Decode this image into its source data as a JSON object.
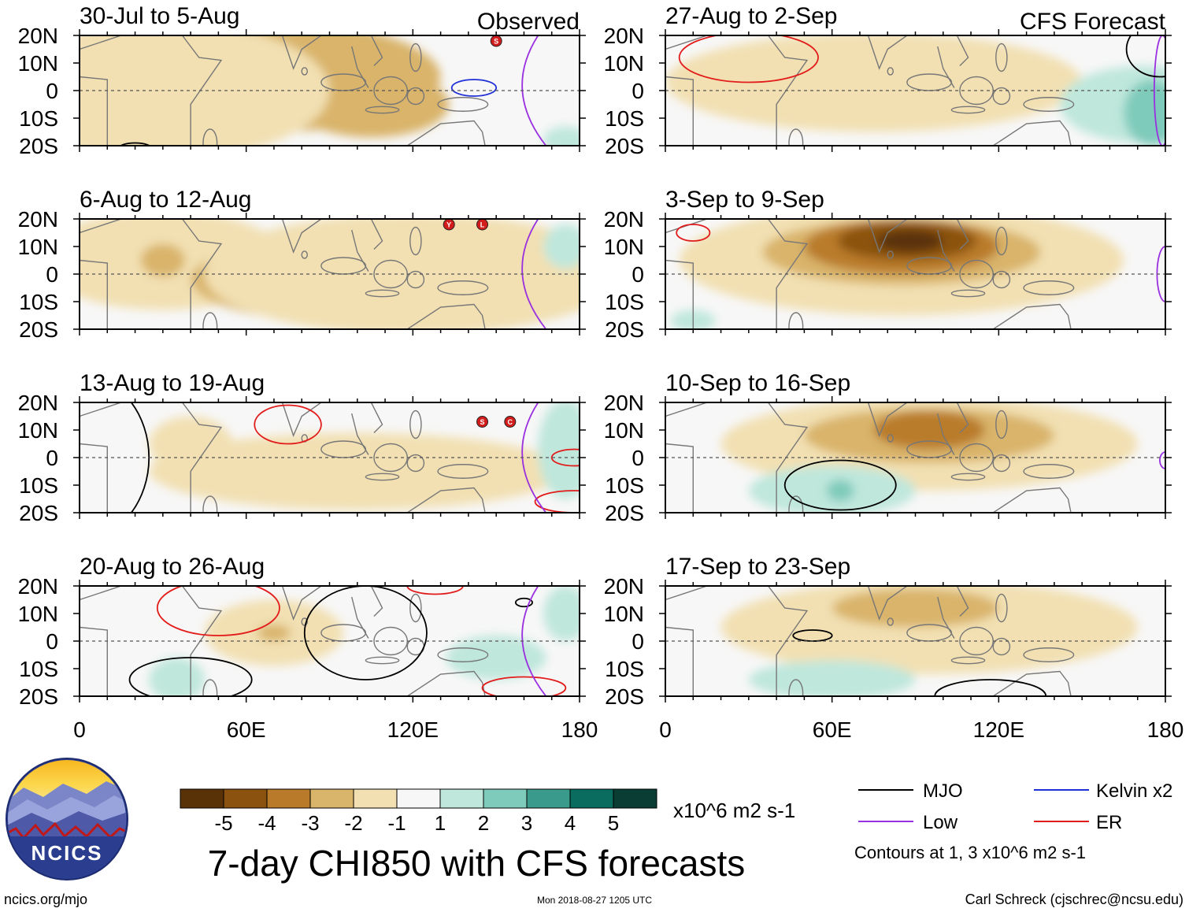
{
  "chart_data": {
    "type": "heatmap",
    "title": "7-day CHI850 with CFS forecasts",
    "units": "x10^6 m2 s-1",
    "xlabel": "",
    "ylabel": "",
    "xlim": [
      0,
      180
    ],
    "ylim": [
      -20,
      20
    ],
    "x_ticks": [
      "0",
      "60E",
      "120E",
      "180"
    ],
    "y_ticks": [
      "20N",
      "10N",
      "0",
      "10S",
      "20S"
    ],
    "colorbar": {
      "tick_labels": [
        "-5",
        "-4",
        "-3",
        "-2",
        "-1",
        "1",
        "2",
        "3",
        "4",
        "5"
      ],
      "colors": [
        "#5a3208",
        "#8b520f",
        "#b97b2a",
        "#d9b46b",
        "#f2e0b2",
        "#f7f7f7",
        "#bfe7dc",
        "#7fcbbb",
        "#3a9b8d",
        "#0a6b5f",
        "#0a3d33"
      ]
    },
    "columns": [
      {
        "name": "Observed",
        "panels": [
          {
            "period": "30-Jul to 5-Aug",
            "header": "Observed",
            "blobs": [
              {
                "lon": 20,
                "lat": 10,
                "value": -2.5,
                "rlon": 22,
                "rlat": 9
              },
              {
                "lon": 70,
                "lat": 10,
                "value": -2.5,
                "rlon": 20,
                "rlat": 10
              },
              {
                "lon": 105,
                "lat": -5,
                "value": -2.5,
                "rlon": 28,
                "rlat": 12
              },
              {
                "lon": 70,
                "lat": 5,
                "value": -2,
                "rlon": 60,
                "rlat": 20
              },
              {
                "lon": 30,
                "lat": 0,
                "value": -1,
                "rlon": 60,
                "rlat": 25
              },
              {
                "lon": 175,
                "lat": -18,
                "value": 1.2,
                "rlon": 8,
                "rlat": 5
              }
            ],
            "contours": [
              {
                "type": "Kelvin",
                "lon": 142,
                "lat": 1,
                "rlon": 8,
                "rlat": 3
              },
              {
                "type": "MJO",
                "lon": 20,
                "lat": -21,
                "rlon": 6,
                "rlat": 2
              }
            ],
            "storms": [
              {
                "lon": 150,
                "lat": 18,
                "label": "S"
              }
            ]
          },
          {
            "period": "6-Aug to 12-Aug",
            "header": "",
            "blobs": [
              {
                "lon": 30,
                "lat": 5,
                "value": -1.8,
                "rlon": 45,
                "rlat": 18
              },
              {
                "lon": 95,
                "lat": -3,
                "value": -3,
                "rlon": 35,
                "rlat": 10
              },
              {
                "lon": 100,
                "lat": -2,
                "value": -2,
                "rlon": 60,
                "rlat": 16
              },
              {
                "lon": 120,
                "lat": 0,
                "value": -1,
                "rlon": 75,
                "rlat": 22
              },
              {
                "lon": 30,
                "lat": 5,
                "value": -2.6,
                "rlon": 8,
                "rlat": 6
              },
              {
                "lon": 175,
                "lat": 10,
                "value": 1.2,
                "rlon": 8,
                "rlat": 8
              }
            ],
            "contours": [],
            "storms": [
              {
                "lon": 133,
                "lat": 18,
                "label": "Y"
              },
              {
                "lon": 145,
                "lat": 18,
                "label": "L"
              }
            ]
          },
          {
            "period": "13-Aug to 19-Aug",
            "header": "",
            "blobs": [
              {
                "lon": 105,
                "lat": -6,
                "value": -2,
                "rlon": 40,
                "rlat": 10
              },
              {
                "lon": 100,
                "lat": -5,
                "value": -1,
                "rlon": 75,
                "rlat": 14
              },
              {
                "lon": 40,
                "lat": 5,
                "value": -1,
                "rlon": 15,
                "rlat": 10
              },
              {
                "lon": 175,
                "lat": 3,
                "value": 1.5,
                "rlon": 10,
                "rlat": 18
              }
            ],
            "contours": [
              {
                "type": "ER",
                "lon": 75,
                "lat": 12,
                "rlon": 12,
                "rlat": 7
              },
              {
                "type": "ER",
                "lon": 178,
                "lat": 0,
                "rlon": 8,
                "rlat": 3
              },
              {
                "type": "ER",
                "lon": 178,
                "lat": -16,
                "rlon": 14,
                "rlat": 4
              },
              {
                "type": "MJO",
                "lon": 0,
                "lat": 0,
                "rlon": 25,
                "rlat": 30
              }
            ],
            "storms": [
              {
                "lon": 145,
                "lat": 13,
                "label": "S"
              },
              {
                "lon": 155,
                "lat": 13,
                "label": "C"
              }
            ]
          },
          {
            "period": "20-Aug to 26-Aug",
            "header": "",
            "blobs": [
              {
                "lon": 70,
                "lat": 3,
                "value": -1,
                "rlon": 25,
                "rlat": 12
              },
              {
                "lon": 70,
                "lat": 3,
                "value": -2,
                "rlon": 6,
                "rlat": 3
              },
              {
                "lon": 35,
                "lat": -14,
                "value": 1.2,
                "rlon": 10,
                "rlat": 8
              },
              {
                "lon": 150,
                "lat": -6,
                "value": 1.2,
                "rlon": 18,
                "rlat": 8
              },
              {
                "lon": 175,
                "lat": 10,
                "value": 1.2,
                "rlon": 8,
                "rlat": 10
              }
            ],
            "contours": [
              {
                "type": "ER",
                "lon": 50,
                "lat": 12,
                "rlon": 22,
                "rlat": 10
              },
              {
                "type": "ER",
                "lon": 160,
                "lat": -17,
                "rlon": 15,
                "rlat": 4
              },
              {
                "type": "ER",
                "lon": 128,
                "lat": 20,
                "rlon": 10,
                "rlat": 3
              },
              {
                "type": "MJO",
                "lon": 103,
                "lat": 3,
                "rlon": 22,
                "rlat": 17
              },
              {
                "type": "MJO",
                "lon": 40,
                "lat": -14,
                "rlon": 22,
                "rlat": 8
              },
              {
                "type": "MJO",
                "lon": 160,
                "lat": 14,
                "rlon": 3,
                "rlat": 1.5
              }
            ],
            "storms": []
          }
        ]
      },
      {
        "name": "CFS Forecast",
        "panels": [
          {
            "period": "27-Aug to 2-Sep",
            "header": "CFS Forecast",
            "blobs": [
              {
                "lon": 90,
                "lat": 5,
                "value": -3,
                "rlon": 22,
                "rlat": 5
              },
              {
                "lon": 85,
                "lat": 5,
                "value": -2,
                "rlon": 40,
                "rlat": 12
              },
              {
                "lon": 75,
                "lat": 3,
                "value": -1,
                "rlon": 75,
                "rlat": 18
              },
              {
                "lon": 172,
                "lat": -5,
                "value": 1,
                "rlon": 30,
                "rlat": 14
              },
              {
                "lon": 175,
                "lat": -8,
                "value": 2,
                "rlon": 10,
                "rlat": 12
              }
            ],
            "contours": [
              {
                "type": "ER",
                "lon": 30,
                "lat": 12,
                "rlon": 25,
                "rlat": 9
              },
              {
                "type": "Low",
                "lon": 179,
                "lat": 0,
                "rlon": 3,
                "rlat": 20
              },
              {
                "type": "MJO",
                "lon": 178,
                "lat": 15,
                "rlon": 12,
                "rlat": 10
              }
            ],
            "storms": []
          },
          {
            "period": "3-Sep to 9-Sep",
            "header": "",
            "blobs": [
              {
                "lon": 85,
                "lat": 5,
                "value": -1,
                "rlon": 80,
                "rlat": 20
              },
              {
                "lon": 85,
                "lat": 8,
                "value": -2,
                "rlon": 50,
                "rlat": 12
              },
              {
                "lon": 85,
                "lat": 10,
                "value": -3,
                "rlon": 35,
                "rlat": 10
              },
              {
                "lon": 87,
                "lat": 12,
                "value": -4,
                "rlon": 25,
                "rlat": 7
              },
              {
                "lon": 88,
                "lat": 12,
                "value": -5,
                "rlon": 12,
                "rlat": 4
              },
              {
                "lon": 10,
                "lat": -17,
                "value": 1,
                "rlon": 8,
                "rlat": 4
              }
            ],
            "contours": [
              {
                "type": "ER",
                "lon": 10,
                "lat": 15,
                "rlon": 6,
                "rlat": 3
              },
              {
                "type": "Low",
                "lon": 180,
                "lat": 0,
                "rlon": 3,
                "rlat": 10
              }
            ],
            "storms": []
          },
          {
            "period": "10-Sep to 16-Sep",
            "header": "",
            "blobs": [
              {
                "lon": 95,
                "lat": 5,
                "value": -1,
                "rlon": 75,
                "rlat": 17
              },
              {
                "lon": 95,
                "lat": 8,
                "value": -2,
                "rlon": 45,
                "rlat": 10
              },
              {
                "lon": 95,
                "lat": 10,
                "value": -3,
                "rlon": 20,
                "rlat": 7
              },
              {
                "lon": 60,
                "lat": -12,
                "value": 1,
                "rlon": 30,
                "rlat": 9
              },
              {
                "lon": 63,
                "lat": -12,
                "value": 2,
                "rlon": 5,
                "rlat": 4
              }
            ],
            "contours": [
              {
                "type": "MJO",
                "lon": 63,
                "lat": -10,
                "rlon": 20,
                "rlat": 9
              },
              {
                "type": "Low",
                "lon": 180,
                "lat": -1,
                "rlon": 2,
                "rlat": 3
              }
            ],
            "storms": []
          },
          {
            "period": "17-Sep to 23-Sep",
            "header": "",
            "blobs": [
              {
                "lon": 95,
                "lat": 5,
                "value": -1,
                "rlon": 75,
                "rlat": 17
              },
              {
                "lon": 90,
                "lat": 12,
                "value": -2,
                "rlon": 30,
                "rlat": 7
              },
              {
                "lon": 60,
                "lat": -14,
                "value": 1,
                "rlon": 30,
                "rlat": 7
              }
            ],
            "contours": [
              {
                "type": "MJO",
                "lon": 117,
                "lat": -20,
                "rlon": 20,
                "rlat": 6
              },
              {
                "type": "MJO",
                "lon": 53,
                "lat": 2,
                "rlon": 7,
                "rlat": 2
              }
            ],
            "storms": []
          }
        ]
      }
    ]
  },
  "legend": {
    "items": [
      {
        "label": "MJO",
        "color": "#000000"
      },
      {
        "label": "Kelvin x2",
        "color": "#1f2fd6"
      },
      {
        "label": "Low",
        "color": "#9a30e0"
      },
      {
        "label": "ER",
        "color": "#e21b1b"
      }
    ],
    "contour_note": "Contours at 1, 3 x10^6 m2 s-1"
  },
  "logo": {
    "text": "NCICS"
  },
  "footer": {
    "url": "ncics.org/mjo",
    "timestamp": "Mon 2018-08-27 1205 UTC",
    "credit": "Carl Schreck (cjschrec@ncsu.edu)"
  }
}
